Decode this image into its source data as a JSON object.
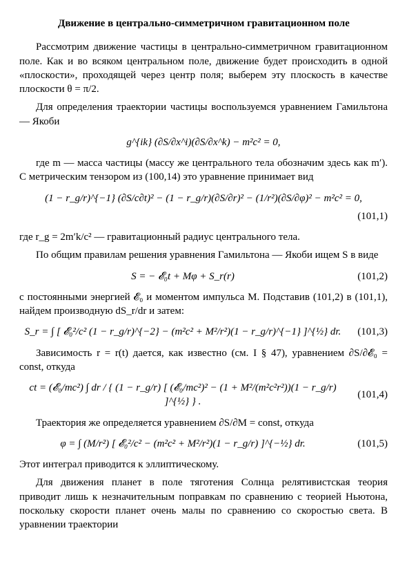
{
  "title": "Движение в центрально-симметричном гравитационном поле",
  "p1": "Рассмотрим движение частицы в центрально-симметричном гравитационном поле. Как и во всяком центральном поле, движение будет происходить в одной «плоскости», проходящей через центр поля; выберем эту плоскость в качестве плоскости θ = π/2.",
  "p2": "Для определения траектории частицы воспользуемся уравнением Гамильтона — Якоби",
  "eq0": "g^{ik} (∂S/∂x^i)(∂S/∂x^k) − m²c² = 0,",
  "p3": "где m — масса частицы (массу же центрального тела обозначим здесь как m′). С метрическим тензором из (100,14) это уравнение принимает вид",
  "eq1": "(1 − r_g/r)^{−1} (∂S/c∂t)² − (1 − r_g/r)(∂S/∂r)² − (1/r²)(∂S/∂φ)² − m²c² = 0,",
  "eq1num": "(101,1)",
  "p4a": "где r_g = 2m′k/c² — гравитационный радиус центрального тела.",
  "p4b": "По общим правилам решения уравнения Гамильтона — Якоби ищем S в виде",
  "eq2": "S = − 𝓔₀t + Mφ + S_r(r)",
  "eq2num": "(101,2)",
  "p5": "с постоянными энергией 𝓔₀ и моментом импульса M. Подставив (101,2) в (101,1), найдем производную dS_r/dr и затем:",
  "eq3": "S_r = ∫ [ 𝓔₀²/c² (1 − r_g/r)^{−2} − (m²c² + M²/r²)(1 − r_g/r)^{−1} ]^{½} dr.",
  "eq3num": "(101,3)",
  "p6": "Зависимость r = r(t) дается, как известно (см. I § 47), уравнением ∂S/∂𝓔₀ = const, откуда",
  "eq4": "ct = (𝓔₀/mc²) ∫ dr / { (1 − r_g/r) [ (𝓔₀/mc²)² − (1 + M²/(m²c²r²))(1 − r_g/r) ]^{½} } .",
  "eq4num": "(101,4)",
  "p7": "Траектория же определяется уравнением ∂S/∂M = const, откуда",
  "eq5": "φ = ∫ (M/r²) [ 𝓔₀²/c² − (m²c² + M²/r²)(1 − r_g/r) ]^{−½} dr.",
  "eq5num": "(101,5)",
  "p8": "Этот интеграл приводится к эллиптическому.",
  "p9": "Для движения планет в поле тяготения Солнца релятивистская теория приводит лишь к незначительным поправкам по сравнению с теорией Ньютона, поскольку скорости планет очень малы по сравнению со скоростью света. В уравнении траектории"
}
